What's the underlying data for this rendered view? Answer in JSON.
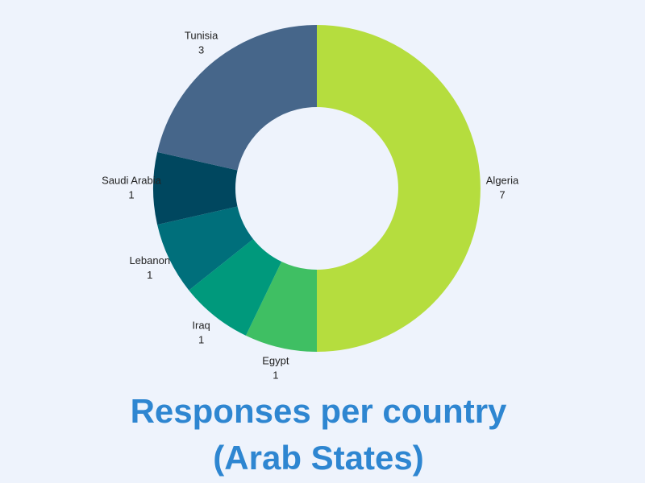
{
  "chart_data": {
    "type": "donut",
    "title": "Responses per country (Arab States)",
    "categories": [
      "Algeria",
      "Egypt",
      "Iraq",
      "Lebanon",
      "Saudi Arabia",
      "Tunisia"
    ],
    "values": [
      7,
      1,
      1,
      1,
      1,
      3
    ],
    "colors": [
      "#b5dd3e",
      "#3fbf63",
      "#00997c",
      "#006f7b",
      "#00475f",
      "#46668a"
    ]
  }
}
